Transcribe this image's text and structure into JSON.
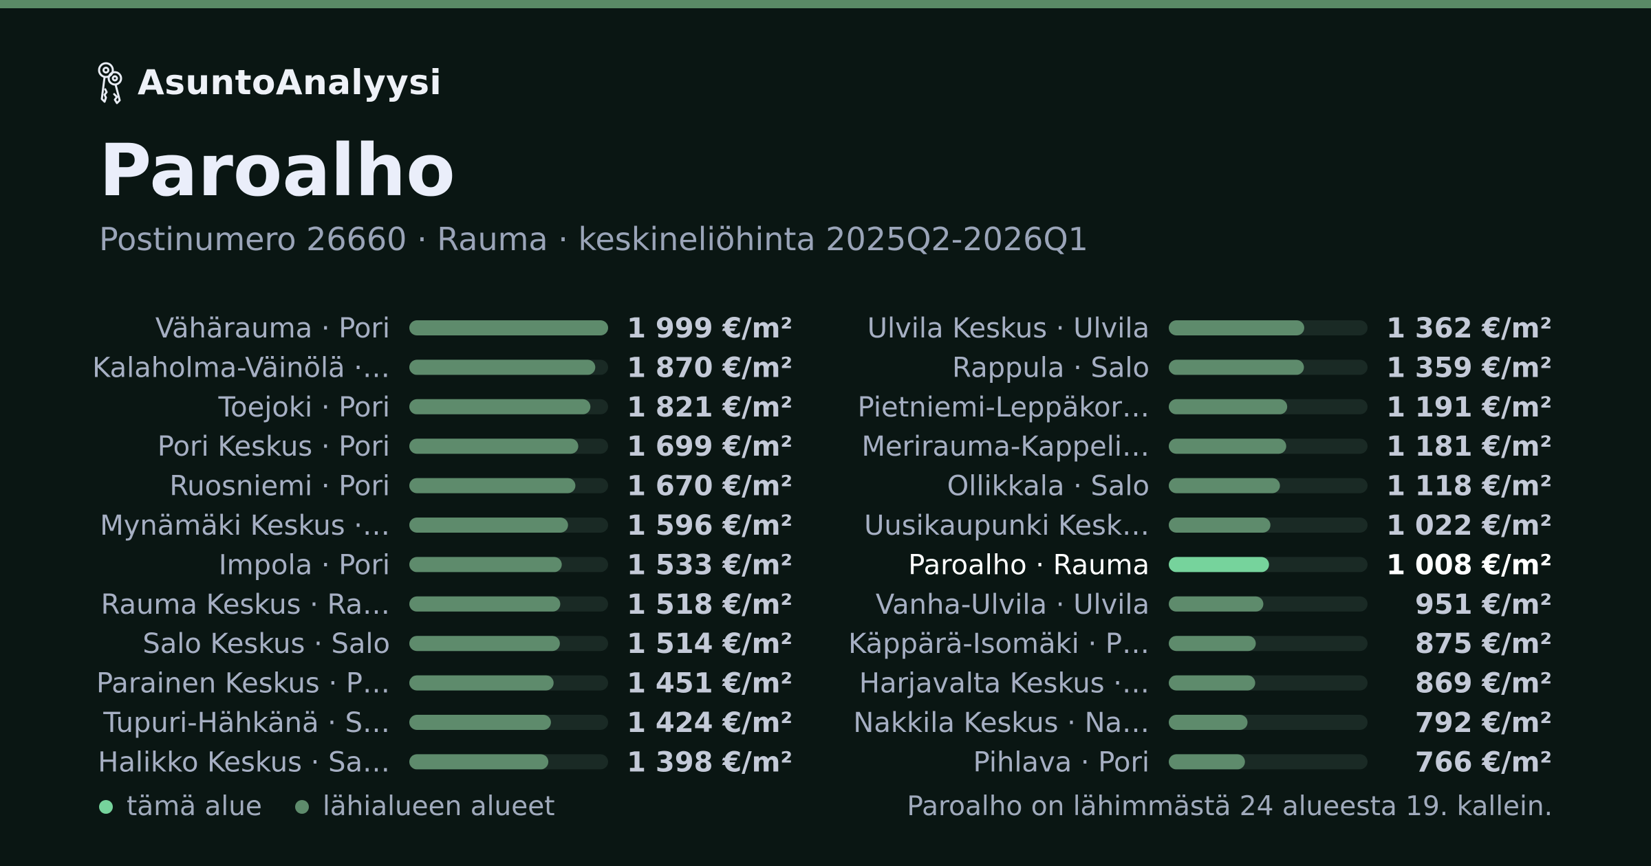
{
  "brand": {
    "name": "AsuntoAnalyysi",
    "icon": "keys-icon"
  },
  "page": {
    "title": "Paroalho",
    "subtitle": "Postinumero 26660 · Rauma · keskineliöhinta 2025Q2-2026Q1"
  },
  "colors": {
    "background": "#0a1613",
    "accent_bar": "#5a8a66",
    "bar_other": "#5e8b6c",
    "bar_highlight": "#76d39c",
    "track": "#1a2a25",
    "label": "#a6afc3",
    "value": "#c4cad8",
    "highlight_text": "#ffffff"
  },
  "chart_data": {
    "type": "bar",
    "orientation": "horizontal",
    "unit": "€/m²",
    "xlim": [
      0,
      1999
    ],
    "highlight": "Paroalho · Rauma",
    "columns": [
      {
        "categories": [
          "Vähärauma · Pori",
          "Kalaholma-Väinölä ·…",
          "Toejoki · Pori",
          "Pori Keskus · Pori",
          "Ruosniemi · Pori",
          "Mynämäki Keskus ·…",
          "Impola · Pori",
          "Rauma Keskus · Ra…",
          "Salo Keskus · Salo",
          "Parainen Keskus · P…",
          "Tupuri-Hähkänä · S…",
          "Halikko Keskus · Sa…"
        ],
        "values": [
          1999,
          1870,
          1821,
          1699,
          1670,
          1596,
          1533,
          1518,
          1514,
          1451,
          1424,
          1398
        ],
        "labels": [
          "1 999 €/m²",
          "1 870 €/m²",
          "1 821 €/m²",
          "1 699 €/m²",
          "1 670 €/m²",
          "1 596 €/m²",
          "1 533 €/m²",
          "1 518 €/m²",
          "1 514 €/m²",
          "1 451 €/m²",
          "1 424 €/m²",
          "1 398 €/m²"
        ]
      },
      {
        "categories": [
          "Ulvila Keskus · Ulvila",
          "Rappula · Salo",
          "Pietniemi-Leppäkor…",
          "Merirauma-Kappeli…",
          "Ollikkala · Salo",
          "Uusikaupunki Kesk…",
          "Paroalho · Rauma",
          "Vanha-Ulvila · Ulvila",
          "Käppärä-Isomäki · P…",
          "Harjavalta Keskus ·…",
          "Nakkila Keskus · Na…",
          "Pihlava · Pori"
        ],
        "values": [
          1362,
          1359,
          1191,
          1181,
          1118,
          1022,
          1008,
          951,
          875,
          869,
          792,
          766
        ],
        "labels": [
          "1 362 €/m²",
          "1 359 €/m²",
          "1 191 €/m²",
          "1 181 €/m²",
          "1 118 €/m²",
          "1 022 €/m²",
          "1 008 €/m²",
          "951 €/m²",
          "875 €/m²",
          "869 €/m²",
          "792 €/m²",
          "766 €/m²"
        ]
      }
    ]
  },
  "legend": {
    "this_area": "tämä alue",
    "nearby": "lähialueen alueet"
  },
  "footnote": "Paroalho on lähimmästä 24 alueesta 19. kallein."
}
